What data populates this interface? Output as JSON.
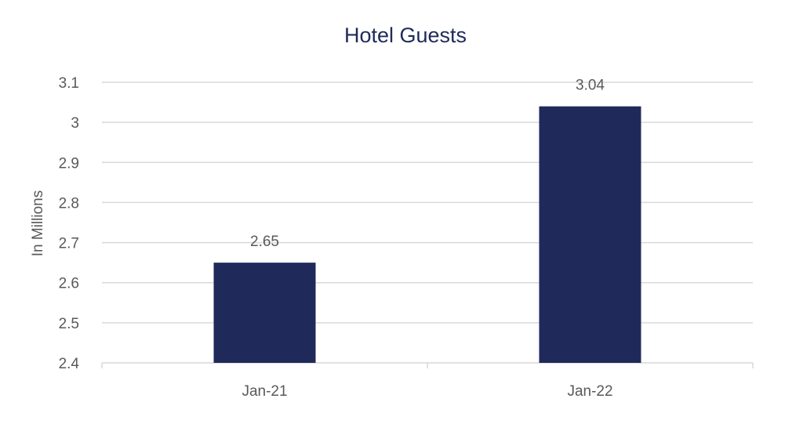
{
  "chart_data": {
    "type": "bar",
    "title": "Hotel Guests",
    "ylabel": "In Millions",
    "xlabel": "",
    "categories": [
      "Jan-21",
      "Jan-22"
    ],
    "values": [
      2.65,
      3.04
    ],
    "data_labels": [
      "2.65",
      "3.04"
    ],
    "ylim": [
      2.4,
      3.1
    ],
    "y_ticks": [
      "2.4",
      "2.5",
      "2.6",
      "2.7",
      "2.8",
      "2.9",
      "3",
      "3.1"
    ],
    "grid": true,
    "legend": "none"
  },
  "colors": {
    "bar": "#1f2a5a",
    "title": "#1f2a5a",
    "grid": "#d9d9d9",
    "axis": "#d9d9d9",
    "text": "#595959"
  }
}
